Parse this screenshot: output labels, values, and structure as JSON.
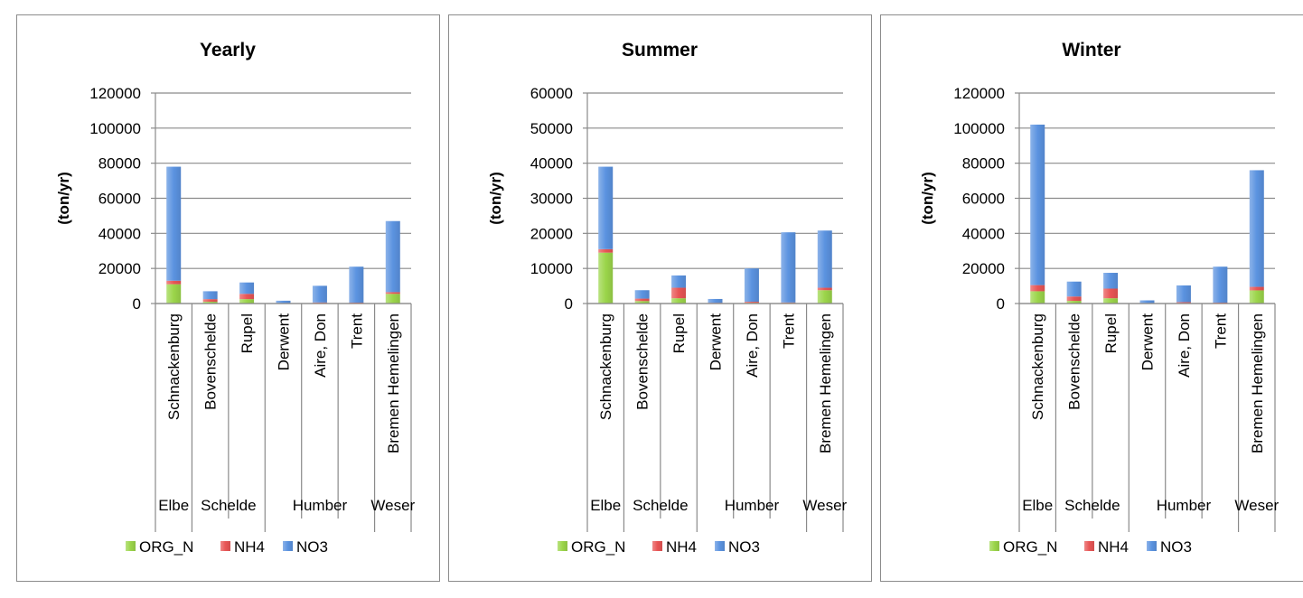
{
  "colors": {
    "ORG_N": "#9bd54a",
    "NH4": "#e85555",
    "NO3": "#5b93e0"
  },
  "chart_data": [
    {
      "type": "bar",
      "stacked": true,
      "title": "Yearly",
      "ylabel": "(ton/yr)",
      "ylim": [
        0,
        120000
      ],
      "yticks": [
        "0",
        "20000",
        "40000",
        "60000",
        "80000",
        "100000",
        "120000"
      ],
      "categories": [
        "Schnackenburg",
        "Bovenschelde",
        "Rupel",
        "Derwent",
        "Aire, Don",
        "Trent",
        "Bremen Hemelingen"
      ],
      "groups": [
        {
          "label": "Elbe",
          "span": 1
        },
        {
          "label": "Schelde",
          "span": 2
        },
        {
          "label": "Humber",
          "span": 3
        },
        {
          "label": "Weser",
          "span": 1
        }
      ],
      "series": [
        {
          "name": "ORG_N",
          "values": [
            11000,
            1000,
            2500,
            200,
            300,
            300,
            5500
          ]
        },
        {
          "name": "NH4",
          "values": [
            2000,
            1500,
            3000,
            100,
            300,
            200,
            1000
          ]
        },
        {
          "name": "NO3",
          "values": [
            65000,
            4500,
            6500,
            1300,
            9500,
            20500,
            40500
          ]
        }
      ],
      "legend": [
        "ORG_N",
        "NH4",
        "NO3"
      ],
      "legend_position": "bottom",
      "grid": true
    },
    {
      "type": "bar",
      "stacked": true,
      "title": "Summer",
      "ylabel": "(ton/yr)",
      "ylim": [
        0,
        60000
      ],
      "yticks": [
        "0",
        "10000",
        "20000",
        "30000",
        "40000",
        "50000",
        "60000"
      ],
      "categories": [
        "Schnackenburg",
        "Bovenschelde",
        "Rupel",
        "Derwent",
        "Aire, Don",
        "Trent",
        "Bremen Hemelingen"
      ],
      "groups": [
        {
          "label": "Elbe",
          "span": 1
        },
        {
          "label": "Schelde",
          "span": 2
        },
        {
          "label": "Humber",
          "span": 3
        },
        {
          "label": "Weser",
          "span": 1
        }
      ],
      "series": [
        {
          "name": "ORG_N",
          "values": [
            14500,
            700,
            1500,
            100,
            200,
            200,
            3800
          ]
        },
        {
          "name": "NH4",
          "values": [
            1000,
            700,
            3000,
            100,
            300,
            100,
            700
          ]
        },
        {
          "name": "NO3",
          "values": [
            23500,
            2400,
            3500,
            1100,
            9500,
            20000,
            16300
          ]
        }
      ],
      "legend": [
        "ORG_N",
        "NH4",
        "NO3"
      ],
      "legend_position": "bottom",
      "grid": true
    },
    {
      "type": "bar",
      "stacked": true,
      "title": "Winter",
      "ylabel": "(ton/yr)",
      "ylim": [
        0,
        120000
      ],
      "yticks": [
        "0",
        "20000",
        "40000",
        "60000",
        "80000",
        "100000",
        "120000"
      ],
      "categories": [
        "Schnackenburg",
        "Bovenschelde",
        "Rupel",
        "Derwent",
        "Aire, Don",
        "Trent",
        "Bremen Hemelingen"
      ],
      "groups": [
        {
          "label": "Elbe",
          "span": 1
        },
        {
          "label": "Schelde",
          "span": 2
        },
        {
          "label": "Humber",
          "span": 3
        },
        {
          "label": "Weser",
          "span": 1
        }
      ],
      "series": [
        {
          "name": "ORG_N",
          "values": [
            7000,
            1500,
            3000,
            200,
            300,
            300,
            7500
          ]
        },
        {
          "name": "NH4",
          "values": [
            3500,
            2500,
            5500,
            100,
            500,
            200,
            2000
          ]
        },
        {
          "name": "NO3",
          "values": [
            91500,
            8500,
            9000,
            1500,
            9500,
            20500,
            66500
          ]
        }
      ],
      "legend": [
        "ORG_N",
        "NH4",
        "NO3"
      ],
      "legend_position": "bottom",
      "grid": true
    }
  ]
}
